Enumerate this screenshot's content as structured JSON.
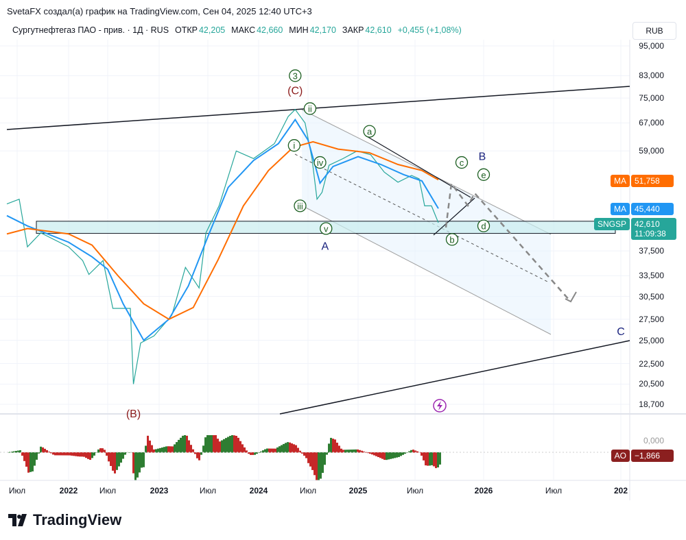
{
  "credit": "SvetaFX создал(а) график на TradingView.com, Сен 04, 2025 12:40 UTC+3",
  "legend": {
    "symbol": "Сургутнефтегаз ПАО - прив. · 1Д · RUS",
    "open_label": "ОТКР",
    "open": "42,205",
    "high_label": "МАКС",
    "high": "42,660",
    "low_label": "МИН",
    "low": "42,170",
    "close_label": "ЗАКР",
    "close": "42,610",
    "change": "+0,455 (+1,08%)"
  },
  "currency": "RUB",
  "tags": {
    "ma_slow_label": "MA",
    "ma_slow_value": "51,758",
    "ma_slow_color": "#ff6d00",
    "ma_fast_label": "MA",
    "ma_fast_value": "45,440",
    "ma_fast_color": "#2196f3",
    "symbol_label": "SNGSP",
    "price_value": "42,610",
    "countdown": "11:09:38",
    "price_color": "#26a69a",
    "ao_label": "AO",
    "ao_value": "−1,866",
    "ao_color": "#8b1f1f",
    "ao_zero": "0,000"
  },
  "logo_text": "TradingView",
  "chart_data": {
    "type": "line",
    "title": "Сургутнефтегаз ПАО - прив. · 1Д",
    "scale": "log",
    "ylim": [
      18000,
      98000
    ],
    "y_ticks": [
      "95,000",
      "83,000",
      "75,000",
      "67,000",
      "59,000",
      "37,500",
      "33,500",
      "30,500",
      "27,500",
      "25,000",
      "22,500",
      "20,500",
      "18,700"
    ],
    "y_tick_values": [
      95000,
      83000,
      75000,
      67000,
      59000,
      37500,
      33500,
      30500,
      27500,
      25000,
      22500,
      20500,
      18700
    ],
    "x_ticks": [
      {
        "label": "Июл",
        "t": 2021.5,
        "bold": false
      },
      {
        "label": "2022",
        "t": 2022,
        "bold": true
      },
      {
        "label": "Июл",
        "t": 2022.5,
        "bold": false
      },
      {
        "label": "2023",
        "t": 2023,
        "bold": true
      },
      {
        "label": "Июл",
        "t": 2023.5,
        "bold": false
      },
      {
        "label": "2024",
        "t": 2024,
        "bold": true
      },
      {
        "label": "Июл",
        "t": 2024.5,
        "bold": false
      },
      {
        "label": "2025",
        "t": 2025,
        "bold": true
      },
      {
        "label": "Июл",
        "t": 2025.5,
        "bold": false
      },
      {
        "label": "2026",
        "t": 2026,
        "bold": true
      },
      {
        "label": "Июл",
        "t": 2026.5,
        "bold": false
      },
      {
        "label": "202",
        "t": 2027,
        "bold": true
      }
    ],
    "series": [
      {
        "name": "SNGSP",
        "color": "#131722",
        "points": [
          [
            2021.4,
            46400
          ],
          [
            2021.52,
            47400
          ],
          [
            2021.6,
            38200
          ],
          [
            2021.73,
            40700
          ],
          [
            2022.0,
            38200
          ],
          [
            2022.18,
            35900
          ],
          [
            2022.26,
            33700
          ],
          [
            2022.44,
            35900
          ],
          [
            2022.55,
            28900
          ],
          [
            2022.72,
            28900
          ],
          [
            2022.75,
            20500
          ],
          [
            2022.82,
            24700
          ],
          [
            2022.95,
            25500
          ],
          [
            2023.13,
            28000
          ],
          [
            2023.27,
            34800
          ],
          [
            2023.41,
            31700
          ],
          [
            2023.48,
            40700
          ],
          [
            2023.61,
            46000
          ],
          [
            2023.78,
            59000
          ],
          [
            2023.95,
            57000
          ],
          [
            2024.16,
            61000
          ],
          [
            2024.3,
            69000
          ],
          [
            2024.37,
            71200
          ],
          [
            2024.47,
            67000
          ],
          [
            2024.54,
            57000
          ],
          [
            2024.59,
            47400
          ],
          [
            2024.64,
            48900
          ],
          [
            2024.71,
            55300
          ],
          [
            2024.85,
            57000
          ],
          [
            2024.99,
            59000
          ],
          [
            2025.11,
            58000
          ],
          [
            2025.23,
            53600
          ],
          [
            2025.35,
            51200
          ],
          [
            2025.47,
            52800
          ],
          [
            2025.53,
            52000
          ],
          [
            2025.57,
            46000
          ],
          [
            2025.62,
            46000
          ],
          [
            2025.67,
            42610
          ]
        ]
      },
      {
        "name": "MA fast",
        "color": "#2196f3",
        "points": [
          [
            2021.4,
            44000
          ],
          [
            2021.6,
            42000
          ],
          [
            2022.0,
            39000
          ],
          [
            2022.3,
            36500
          ],
          [
            2022.5,
            34500
          ],
          [
            2022.65,
            29500
          ],
          [
            2022.85,
            25000
          ],
          [
            2023.1,
            27500
          ],
          [
            2023.3,
            32000
          ],
          [
            2023.5,
            40000
          ],
          [
            2023.7,
            50000
          ],
          [
            2023.95,
            56500
          ],
          [
            2024.2,
            61000
          ],
          [
            2024.37,
            68000
          ],
          [
            2024.5,
            62000
          ],
          [
            2024.62,
            51000
          ],
          [
            2024.75,
            55000
          ],
          [
            2025.0,
            57500
          ],
          [
            2025.2,
            55500
          ],
          [
            2025.4,
            53000
          ],
          [
            2025.55,
            51500
          ],
          [
            2025.67,
            45440
          ]
        ]
      },
      {
        "name": "MA slow",
        "color": "#ff6d00",
        "points": [
          [
            2021.4,
            40500
          ],
          [
            2021.6,
            41500
          ],
          [
            2022.0,
            40500
          ],
          [
            2022.3,
            38500
          ],
          [
            2022.6,
            33500
          ],
          [
            2022.85,
            29500
          ],
          [
            2023.1,
            27500
          ],
          [
            2023.35,
            29000
          ],
          [
            2023.6,
            36000
          ],
          [
            2023.85,
            46000
          ],
          [
            2024.1,
            54000
          ],
          [
            2024.35,
            60000
          ],
          [
            2024.55,
            61500
          ],
          [
            2024.8,
            59500
          ],
          [
            2025.1,
            58500
          ],
          [
            2025.35,
            55500
          ],
          [
            2025.55,
            54000
          ],
          [
            2025.67,
            51758
          ]
        ]
      }
    ],
    "annotations": {
      "waves": [
        {
          "text": "3",
          "style": "circle-green",
          "t": 2024.37,
          "price": 83000
        },
        {
          "text": "(C)",
          "style": "red",
          "t": 2024.37,
          "price": 77500
        },
        {
          "text": "ii",
          "style": "circle-green",
          "t": 2024.52,
          "price": 71500
        },
        {
          "text": "i",
          "style": "circle-green",
          "t": 2024.36,
          "price": 60500
        },
        {
          "text": "iv",
          "style": "circle-green",
          "t": 2024.62,
          "price": 56000
        },
        {
          "text": "iii",
          "style": "circle-green",
          "t": 2024.42,
          "price": 46000
        },
        {
          "text": "v",
          "style": "circle-green",
          "t": 2024.68,
          "price": 41500
        },
        {
          "text": "A",
          "style": "blue",
          "t": 2024.67,
          "price": 38300
        },
        {
          "text": "a",
          "style": "circle-green",
          "t": 2025.1,
          "price": 64500
        },
        {
          "text": "b",
          "style": "circle-green",
          "t": 2025.77,
          "price": 39500
        },
        {
          "text": "c",
          "style": "circle-green",
          "t": 2025.84,
          "price": 56000
        },
        {
          "text": "d",
          "style": "circle-green",
          "t": 2026.0,
          "price": 42000
        },
        {
          "text": "e",
          "style": "circle-green",
          "t": 2026.0,
          "price": 53000
        },
        {
          "text": "B",
          "style": "blue",
          "t": 2025.99,
          "price": 57500
        },
        {
          "text": "C",
          "style": "blue",
          "t": 2027.0,
          "price": 26000
        },
        {
          "text": "(B)",
          "style": "red",
          "t": 2022.75,
          "price": 17900
        }
      ],
      "zone": {
        "low": 40600,
        "high": 42900
      }
    },
    "ao": {
      "name": "AO",
      "last": -1.866
    }
  }
}
